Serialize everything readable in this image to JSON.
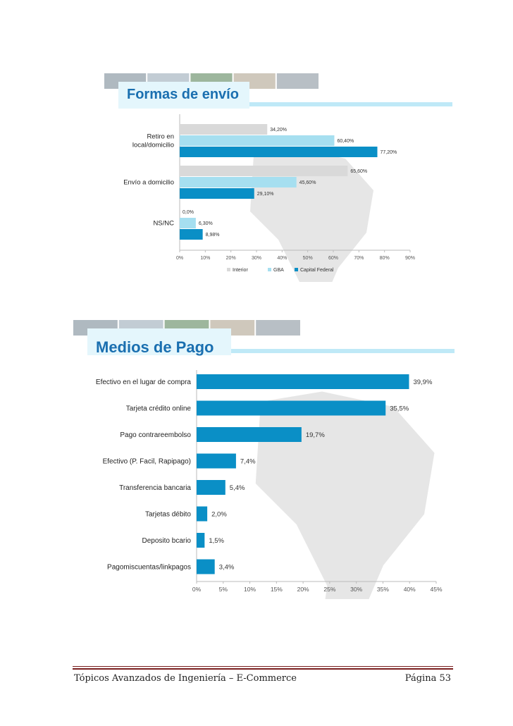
{
  "colors": {
    "interior": "#d9d9d9",
    "gba": "#a6dff0",
    "capital": "#0a8fc6",
    "medios_bar": "#0a8fc6",
    "title_text": "#1a6fb0",
    "map": "#e6e6e6",
    "banner_strip": "#bfe9f7"
  },
  "chart_data": [
    {
      "type": "bar",
      "orientation": "horizontal",
      "title": "Formas de envío",
      "categories": [
        "Retiro en\nlocal/domicilio",
        "Envío a domicilio",
        "NS/NC"
      ],
      "series": [
        {
          "name": "Interior",
          "values": [
            34.2,
            65.6,
            0.0
          ]
        },
        {
          "name": "GBA",
          "values": [
            60.4,
            45.6,
            6.3
          ]
        },
        {
          "name": "Capital Federal",
          "values": [
            77.2,
            29.1,
            8.98
          ]
        }
      ],
      "value_labels": [
        [
          "34,20%",
          "65,60%",
          "0,0%"
        ],
        [
          "60,40%",
          "45,60%",
          "6,30%"
        ],
        [
          "77,20%",
          "29,10%",
          "8,98%"
        ]
      ],
      "xlim": [
        0,
        90
      ],
      "xticks": [
        "0%",
        "10%",
        "20%",
        "30%",
        "40%",
        "50%",
        "60%",
        "70%",
        "80%",
        "90%"
      ],
      "legend_position": "bottom",
      "grid": false
    },
    {
      "type": "bar",
      "orientation": "horizontal",
      "title": "Medios de Pago",
      "categories": [
        "Efectivo en el lugar de compra",
        "Tarjeta crédito online",
        "Pago contrareembolso",
        "Efectivo (P. Facil, Rapipago)",
        "Transferencia bancaria",
        "Tarjetas débito",
        "Deposito bcario",
        "Pagomiscuentas/linkpagos"
      ],
      "values": [
        39.9,
        35.5,
        19.7,
        7.4,
        5.4,
        2.0,
        1.5,
        3.4
      ],
      "value_labels": [
        "39,9%",
        "35,5%",
        "19,7%",
        "7,4%",
        "5,4%",
        "2,0%",
        "1,5%",
        "3,4%"
      ],
      "xlim": [
        0,
        45
      ],
      "xticks": [
        "0%",
        "5%",
        "10%",
        "15%",
        "20%",
        "25%",
        "30%",
        "35%",
        "40%",
        "45%"
      ],
      "grid": false
    }
  ],
  "footer": {
    "left": "Tópicos Avanzados de Ingeniería – E-Commerce",
    "right": "Página 53"
  }
}
